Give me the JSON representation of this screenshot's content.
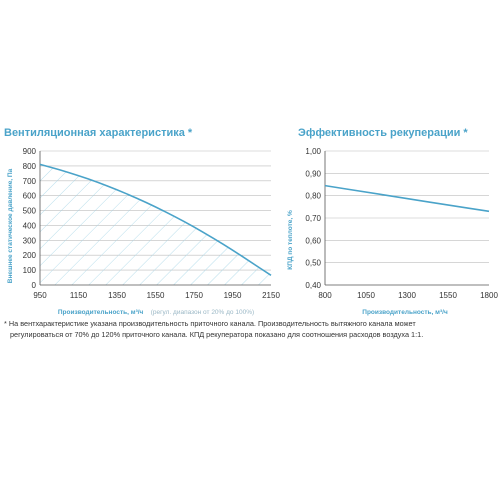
{
  "colors": {
    "line": "#4aa3c9",
    "hatch": "#a6d6e8",
    "axis": "#555555",
    "grid": "#bdbdbd",
    "title": "#4aa3c9"
  },
  "chart_data": [
    {
      "type": "area",
      "title": "Вентиляционная характеристика *",
      "xlabel": "Производительность, м³/ч",
      "xlabel_note": "(регул. диапазон от 20% до 100%)",
      "ylabel": "Внешнее статическое давление, Па",
      "xlim": [
        950,
        2150
      ],
      "ylim": [
        0,
        900
      ],
      "x_ticks": [
        "950",
        "1150",
        "1350",
        "1550",
        "1750",
        "1950",
        "2150"
      ],
      "y_ticks": [
        "0",
        "100",
        "200",
        "300",
        "400",
        "500",
        "600",
        "700",
        "800",
        "900"
      ],
      "grid": "horizontal",
      "fill": "hatched",
      "series": [
        {
          "x": [
            950,
            1050,
            1150,
            1250,
            1350,
            1450,
            1550,
            1650,
            1750,
            1850,
            1950,
            2050,
            2150
          ],
          "values": [
            810,
            775,
            735,
            690,
            640,
            585,
            525,
            460,
            390,
            315,
            235,
            150,
            65
          ]
        }
      ]
    },
    {
      "type": "line",
      "title": "Эффективность рекуперации *",
      "xlabel": "Производительность, м³/ч",
      "ylabel": "КПД по теплоте, %",
      "xlim": [
        800,
        1800
      ],
      "ylim": [
        0.4,
        1.0
      ],
      "x_ticks": [
        "800",
        "1050",
        "1300",
        "1550",
        "1800"
      ],
      "y_ticks": [
        "0,40",
        "0,50",
        "0,60",
        "0,70",
        "0,80",
        "0,90",
        "1,00"
      ],
      "grid": "horizontal",
      "series": [
        {
          "x": [
            800,
            1050,
            1300,
            1550,
            1800
          ],
          "values": [
            0.845,
            0.816,
            0.787,
            0.758,
            0.73
          ]
        }
      ]
    }
  ],
  "footnote": {
    "line1": "* На вентхарактеристике указана производительность приточного канала. Производительность вытяжного канала может",
    "line2": "регулироваться от 70% до 120% приточного канала. КПД рекуператора показано для соотношения расходов воздуха 1:1."
  }
}
